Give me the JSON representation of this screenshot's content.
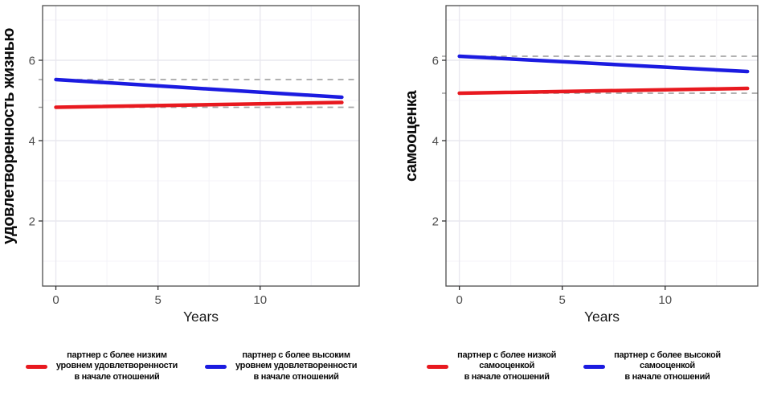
{
  "colors": {
    "red": "#e8191f",
    "blue": "#1b1be0",
    "dashed_reference": "#a6a6a6",
    "grid_major": "#e9e8ef",
    "grid_minor": "#f4f3f8",
    "panel_border": "#4d4d4d",
    "tick_mark": "#333333",
    "tick_label": "#4d4d4d",
    "axis_title": "#1a1a1a"
  },
  "chart_data": [
    {
      "type": "line",
      "title": "",
      "ylabel": "удовлетворенность жизнью",
      "xlabel": "Years",
      "xticks": [
        0,
        5,
        10
      ],
      "yticks": [
        2,
        4,
        6
      ],
      "xlim": [
        -0.65,
        14.85
      ],
      "ylim": [
        0.38,
        7.36
      ],
      "x_minor": [
        2.5,
        7.5,
        12.5
      ],
      "y_minor": [
        1,
        3,
        5,
        7
      ],
      "grid": true,
      "legend_position": "bottom",
      "x": [
        0,
        14
      ],
      "series": [
        {
          "name": "партнер с более низким уровнем удовлетворенности в начале отношений",
          "color_key": "red",
          "values": [
            4.83,
            4.95
          ],
          "baseline_dashed": 4.83,
          "legend_lines": [
            "партнер с более низким",
            "уровнем удовлетворенности",
            "в начале отношений"
          ]
        },
        {
          "name": "партнер с более высоким уровнем удовлетворенности в начале отношений",
          "color_key": "blue",
          "values": [
            5.52,
            5.08
          ],
          "baseline_dashed": 5.52,
          "legend_lines": [
            "партнер с более высоким",
            "уровнем удовлетворенности",
            "в начале отношений"
          ]
        }
      ]
    },
    {
      "type": "line",
      "title": "",
      "ylabel": "самооценка",
      "xlabel": "Years",
      "xticks": [
        0,
        5,
        10
      ],
      "yticks": [
        2,
        4,
        6
      ],
      "xlim": [
        -0.65,
        14.5
      ],
      "ylim": [
        0.38,
        7.36
      ],
      "x_minor": [
        2.5,
        7.5,
        12.5
      ],
      "y_minor": [
        1,
        3,
        5,
        7
      ],
      "grid": true,
      "legend_position": "bottom",
      "x": [
        0,
        14
      ],
      "series": [
        {
          "name": "партнер с более низкой самооценкой в начале отношений",
          "color_key": "red",
          "values": [
            5.18,
            5.3
          ],
          "baseline_dashed": 5.18,
          "legend_lines": [
            "партнер с более низкой",
            "самооценкой",
            "в начале отношений"
          ]
        },
        {
          "name": "партнер с более высокой самооценкой в начале отношений",
          "color_key": "blue",
          "values": [
            6.1,
            5.72
          ],
          "baseline_dashed": 6.1,
          "legend_lines": [
            "партнер с более высокой",
            "самооценкой",
            "в начале отношений"
          ]
        }
      ]
    }
  ]
}
